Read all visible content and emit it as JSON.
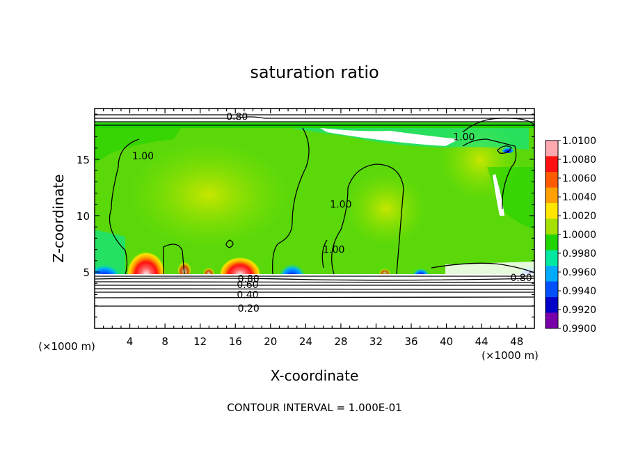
{
  "chart_data": {
    "type": "heatmap",
    "title": "saturation ratio",
    "xlabel": "X-coordinate",
    "ylabel": "Z-coordinate",
    "x_unit": "(×1000 m)",
    "y_unit": "(×1000 m)",
    "xlim": [
      0,
      50
    ],
    "ylim": [
      0,
      19.5
    ],
    "x_ticks": [
      4,
      8,
      12,
      16,
      20,
      24,
      28,
      32,
      36,
      40,
      44,
      48
    ],
    "y_ticks": [
      5,
      10,
      15
    ],
    "footer": "CONTOUR INTERVAL = 1.000E-01",
    "colorbar": {
      "levels": [
        "1.0100",
        "1.0080",
        "1.0060",
        "1.0040",
        "1.0020",
        "1.0000",
        "0.9980",
        "0.9960",
        "0.9940",
        "0.9920",
        "0.9900"
      ],
      "colors": [
        "#ffa8b0",
        "#ff1010",
        "#ff5a00",
        "#ffa000",
        "#ffe600",
        "#a6e000",
        "#22d400",
        "#00e8a0",
        "#00aaff",
        "#0050ff",
        "#0000c8",
        "#7a00aa"
      ]
    },
    "contour_labels": [
      {
        "text": "0.80",
        "x": 16.2,
        "z": 18.8
      },
      {
        "text": "1.00",
        "x": 5.5,
        "z": 15.3
      },
      {
        "text": "1.00",
        "x": 28.0,
        "z": 11.0
      },
      {
        "text": "1.00",
        "x": 27.2,
        "z": 7.0
      },
      {
        "text": "1.00",
        "x": 42.0,
        "z": 17.0
      },
      {
        "text": "0.80",
        "x": 17.5,
        "z": 4.4
      },
      {
        "text": "0.60",
        "x": 17.4,
        "z": 3.9
      },
      {
        "text": "0.40",
        "x": 17.4,
        "z": 3.0
      },
      {
        "text": "0.20",
        "x": 17.5,
        "z": 1.8
      },
      {
        "text": "0.80",
        "x": 48.5,
        "z": 4.5
      }
    ]
  }
}
